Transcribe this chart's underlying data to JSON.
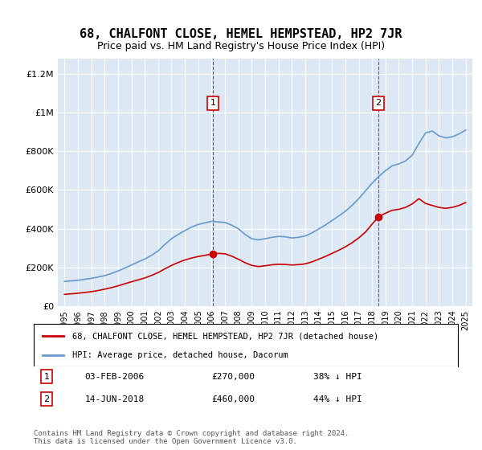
{
  "title": "68, CHALFONT CLOSE, HEMEL HEMPSTEAD, HP2 7JR",
  "subtitle": "Price paid vs. HM Land Registry's House Price Index (HPI)",
  "title_fontsize": 11,
  "subtitle_fontsize": 9,
  "background_color": "#ffffff",
  "plot_bg_color": "#dce9f5",
  "legend1": "68, CHALFONT CLOSE, HEMEL HEMPSTEAD, HP2 7JR (detached house)",
  "legend2": "HPI: Average price, detached house, Dacorum",
  "footer": "Contains HM Land Registry data © Crown copyright and database right 2024.\nThis data is licensed under the Open Government Licence v3.0.",
  "sale1_label": "1",
  "sale1_date": "03-FEB-2006",
  "sale1_price": "£270,000",
  "sale1_pct": "38% ↓ HPI",
  "sale2_label": "2",
  "sale2_date": "14-JUN-2018",
  "sale2_price": "£460,000",
  "sale2_pct": "44% ↓ HPI",
  "sale1_x": 2006.09,
  "sale1_y": 270000,
  "sale2_x": 2018.45,
  "sale2_y": 460000,
  "ylim": [
    0,
    1280000
  ],
  "xlim": [
    1994.5,
    2025.5
  ],
  "yticks": [
    0,
    200000,
    400000,
    600000,
    800000,
    1000000,
    1200000
  ],
  "ytick_labels": [
    "£0",
    "£200K",
    "£400K",
    "£600K",
    "£800K",
    "£1M",
    "£1.2M"
  ],
  "xticks": [
    1995,
    1996,
    1997,
    1998,
    1999,
    2000,
    2001,
    2002,
    2003,
    2004,
    2005,
    2006,
    2007,
    2008,
    2009,
    2010,
    2011,
    2012,
    2013,
    2014,
    2015,
    2016,
    2017,
    2018,
    2019,
    2020,
    2021,
    2022,
    2023,
    2024,
    2025
  ],
  "red_color": "#cc0000",
  "blue_color": "#6699cc",
  "marker_color": "#cc0000",
  "hpi_x": [
    1995,
    1995.5,
    1996,
    1996.5,
    1997,
    1997.5,
    1998,
    1998.5,
    1999,
    1999.5,
    2000,
    2000.5,
    2001,
    2001.5,
    2002,
    2002.5,
    2003,
    2003.5,
    2004,
    2004.5,
    2005,
    2005.5,
    2006,
    2006.5,
    2007,
    2007.5,
    2008,
    2008.5,
    2009,
    2009.5,
    2010,
    2010.5,
    2011,
    2011.5,
    2012,
    2012.5,
    2013,
    2013.5,
    2014,
    2014.5,
    2015,
    2015.5,
    2016,
    2016.5,
    2017,
    2017.5,
    2018,
    2018.5,
    2019,
    2019.5,
    2020,
    2020.5,
    2021,
    2021.5,
    2022,
    2022.5,
    2023,
    2023.5,
    2024,
    2024.5,
    2025
  ],
  "hpi_y": [
    127000,
    130000,
    133000,
    138000,
    143000,
    150000,
    157000,
    168000,
    181000,
    196000,
    212000,
    228000,
    243000,
    262000,
    285000,
    318000,
    348000,
    370000,
    390000,
    408000,
    422000,
    430000,
    438000,
    435000,
    432000,
    418000,
    400000,
    370000,
    348000,
    342000,
    348000,
    355000,
    360000,
    358000,
    352000,
    355000,
    362000,
    378000,
    398000,
    418000,
    442000,
    465000,
    490000,
    520000,
    555000,
    595000,
    635000,
    670000,
    700000,
    725000,
    735000,
    750000,
    780000,
    840000,
    895000,
    905000,
    880000,
    870000,
    875000,
    890000,
    910000
  ],
  "price_x": [
    1995,
    1995.5,
    1996,
    1996.5,
    1997,
    1997.5,
    1998,
    1998.5,
    1999,
    1999.5,
    2000,
    2000.5,
    2001,
    2001.5,
    2002,
    2002.5,
    2003,
    2003.5,
    2004,
    2004.5,
    2005,
    2005.5,
    2006.09,
    2006.5,
    2007,
    2007.5,
    2008,
    2008.5,
    2009,
    2009.5,
    2010,
    2010.5,
    2011,
    2011.5,
    2012,
    2012.5,
    2013,
    2013.5,
    2014,
    2014.5,
    2015,
    2015.5,
    2016,
    2016.5,
    2017,
    2017.5,
    2018.45,
    2018.5,
    2019,
    2019.5,
    2020,
    2020.5,
    2021,
    2021.5,
    2022,
    2022.5,
    2023,
    2023.5,
    2024,
    2024.5,
    2025
  ],
  "price_y": [
    60000,
    63000,
    66000,
    70000,
    74000,
    80000,
    87000,
    95000,
    104000,
    115000,
    125000,
    135000,
    145000,
    158000,
    173000,
    192000,
    210000,
    225000,
    238000,
    248000,
    256000,
    262000,
    270000,
    272000,
    270000,
    258000,
    242000,
    224000,
    210000,
    204000,
    208000,
    213000,
    216000,
    215000,
    212000,
    214000,
    218000,
    228000,
    242000,
    256000,
    272000,
    288000,
    306000,
    327000,
    352000,
    382000,
    460000,
    462000,
    480000,
    495000,
    500000,
    510000,
    528000,
    555000,
    530000,
    520000,
    510000,
    505000,
    510000,
    520000,
    535000
  ]
}
